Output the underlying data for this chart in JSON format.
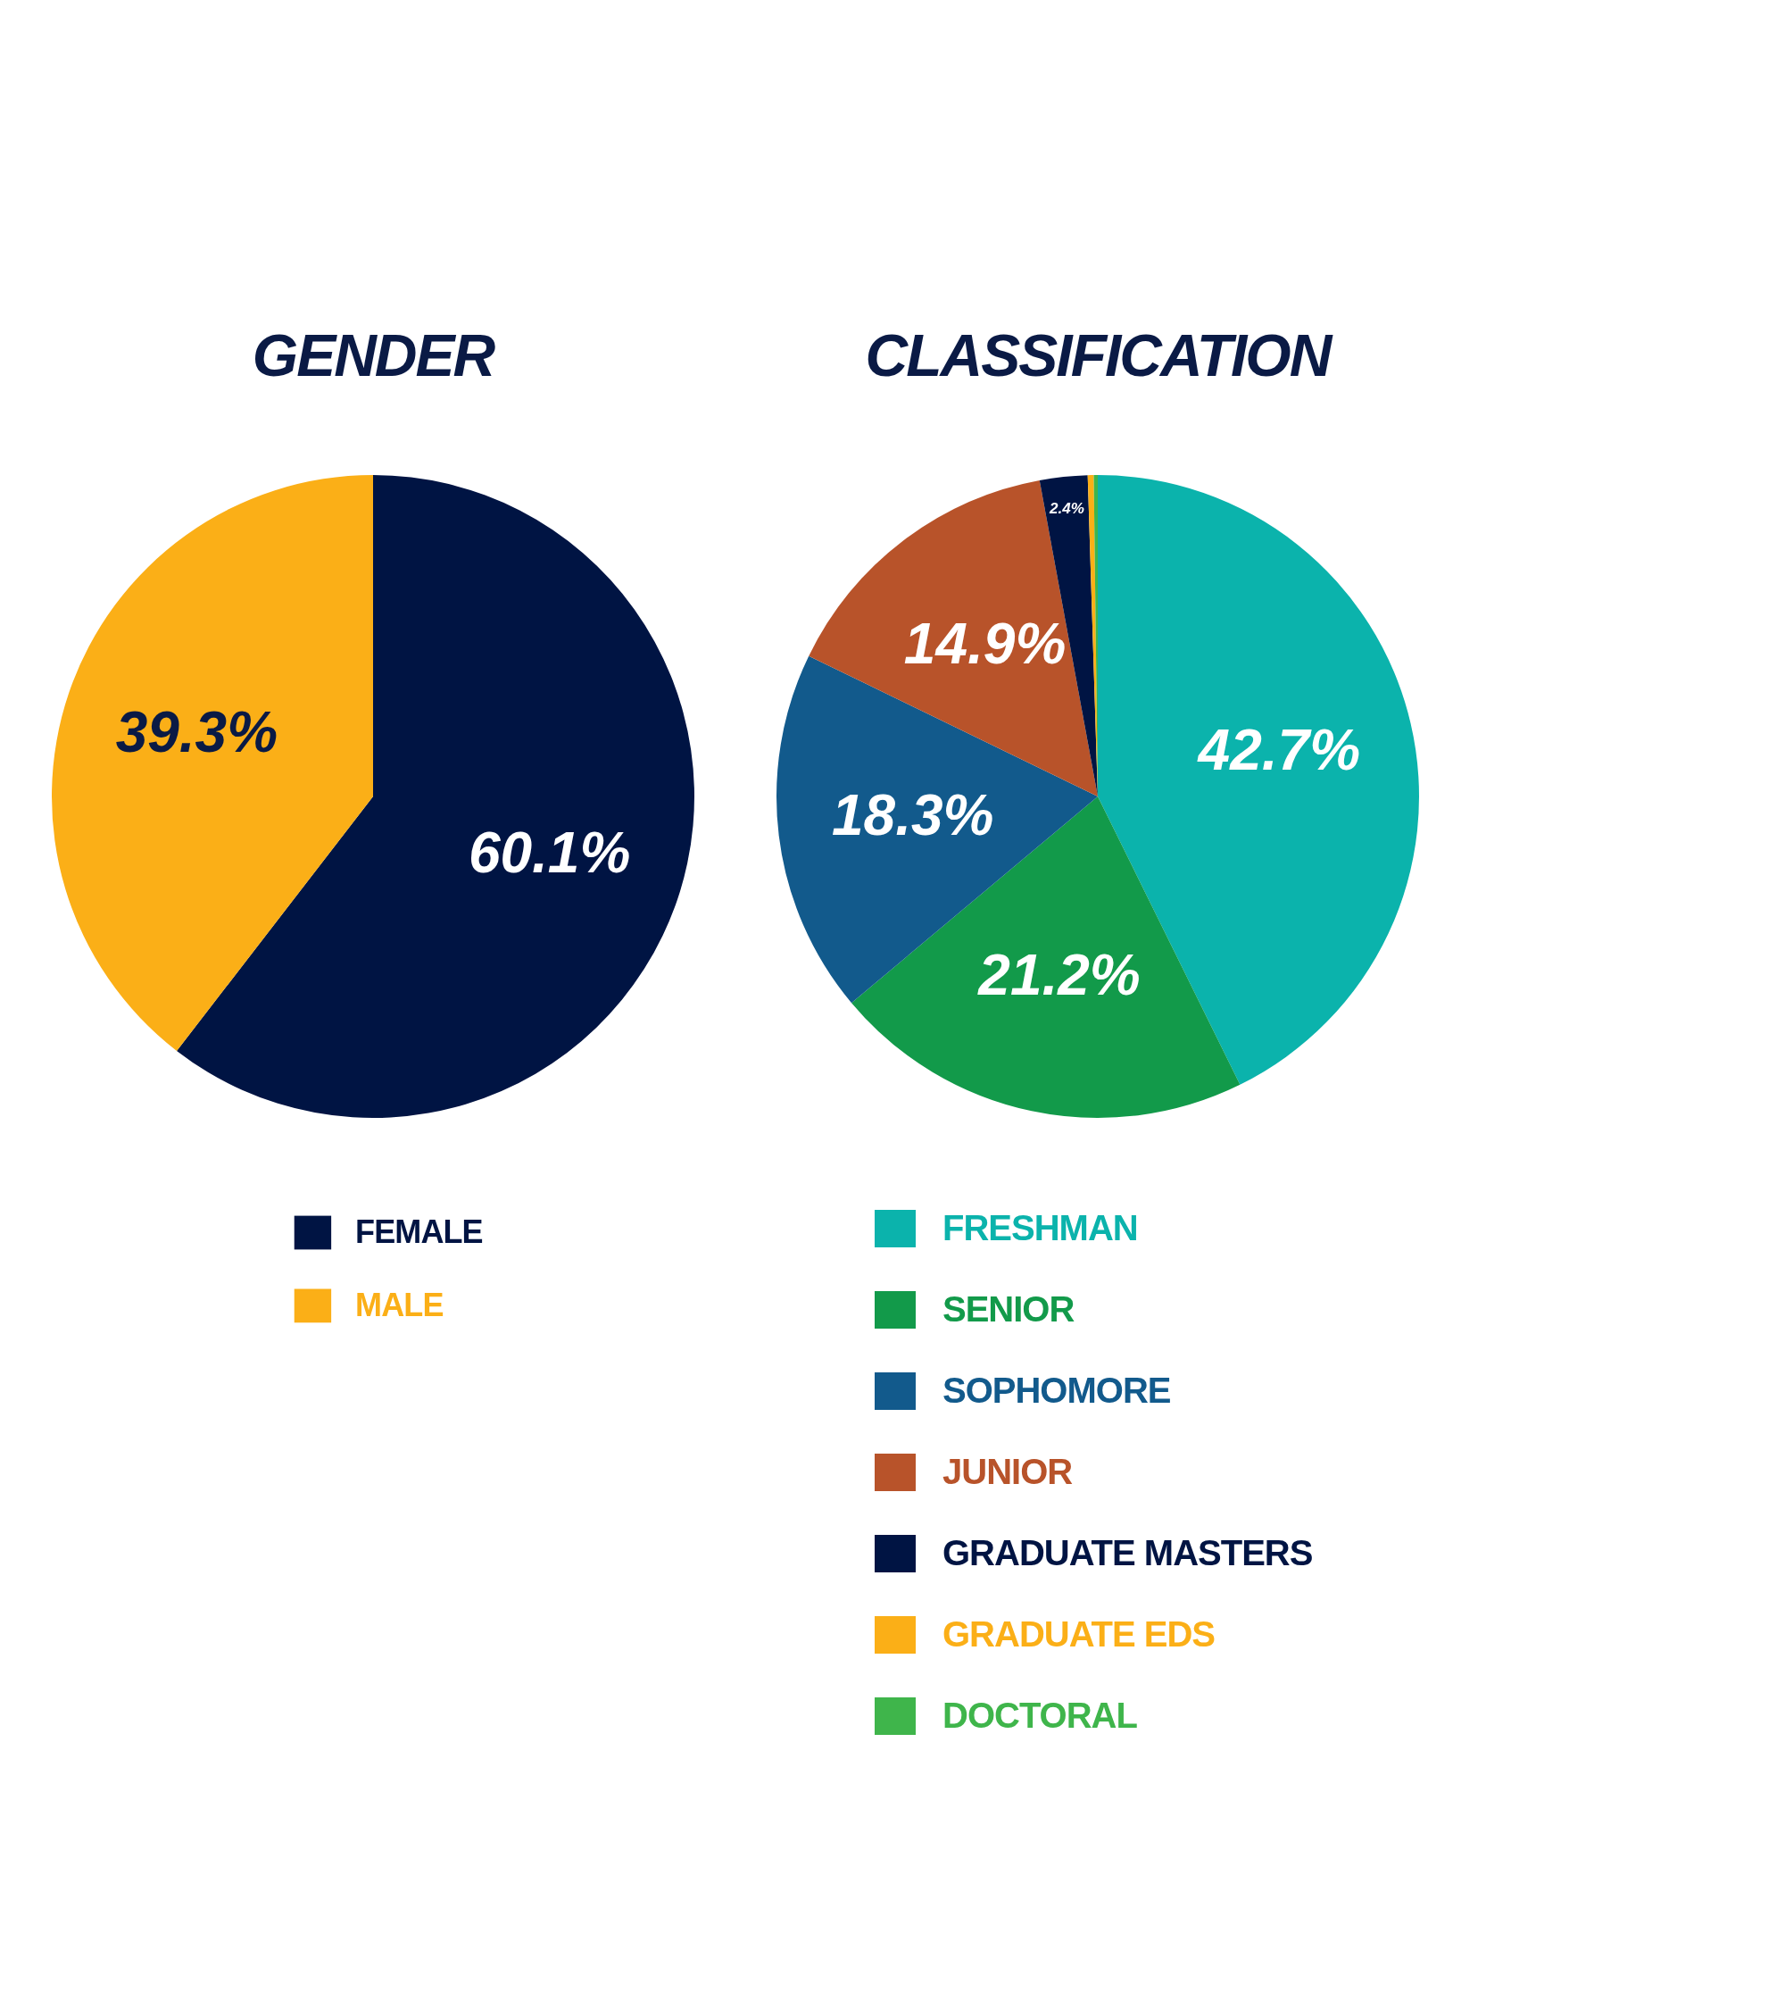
{
  "chart_data": [
    {
      "type": "pie",
      "title": "GENDER",
      "categories": [
        "FEMALE",
        "MALE"
      ],
      "values": [
        60.1,
        39.3
      ],
      "colors": [
        "#001443",
        "#fbaf17"
      ],
      "value_labels": [
        "60.1%",
        "39.3%"
      ],
      "legend": "bottom"
    },
    {
      "type": "pie",
      "title": "CLASSIFICATION",
      "categories": [
        "FRESHMAN",
        "SENIOR",
        "SOPHOMORE",
        "JUNIOR",
        "GRADUATE MASTERS",
        "GRADUATE EDS",
        "DOCTORAL"
      ],
      "values": [
        42.7,
        21.2,
        18.3,
        14.9,
        2.4,
        0.3,
        0.2
      ],
      "colors": [
        "#0bb3ac",
        "#129a4a",
        "#125a8c",
        "#b8532a",
        "#001443",
        "#fbaf17",
        "#3fb54b"
      ],
      "value_labels": [
        "42.7%",
        "21.2%",
        "18.3%",
        "14.9%",
        "2.4%",
        null,
        null
      ],
      "legend": "bottom"
    }
  ]
}
